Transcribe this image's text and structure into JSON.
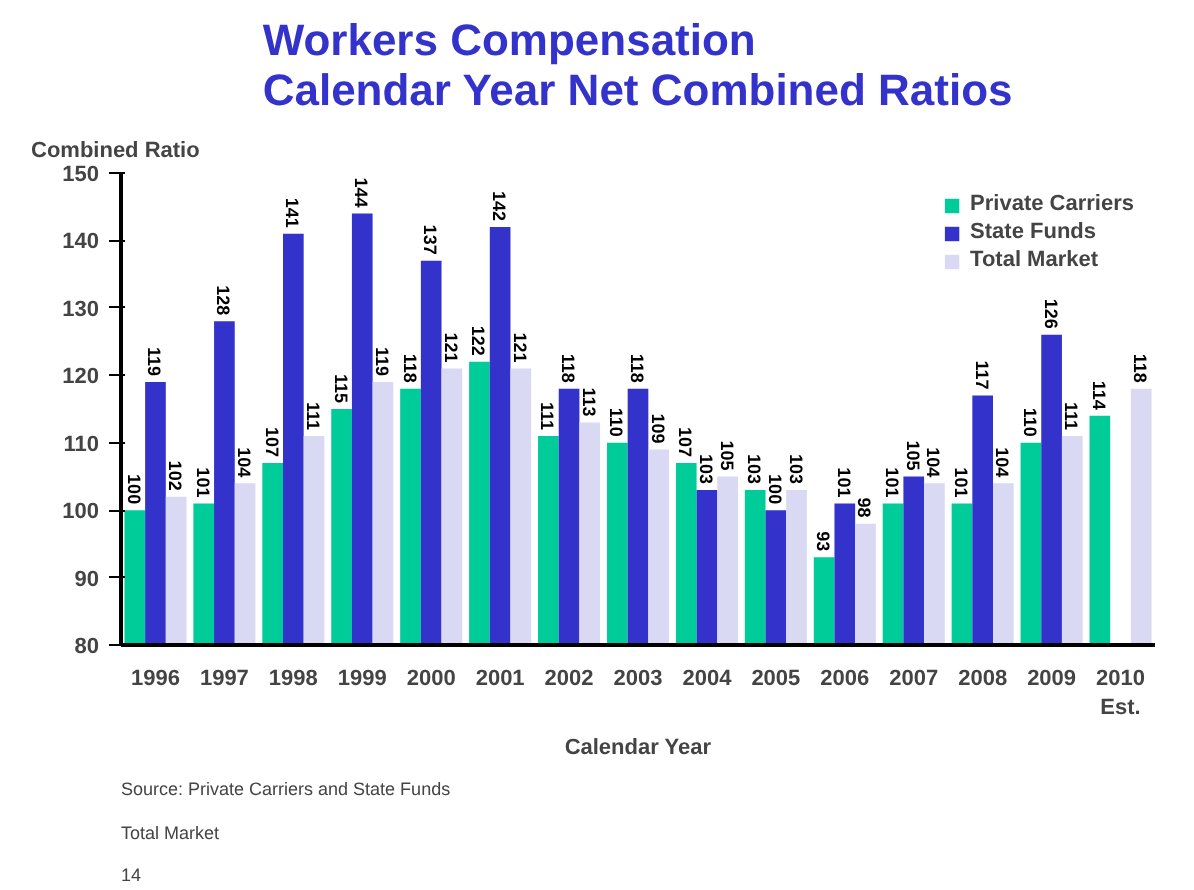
{
  "chart_data": {
    "type": "bar",
    "title": "Workers Compensation\nCalendar Year Net Combined Ratios",
    "xlabel": "Calendar Year",
    "ylabel": "Combined Ratio",
    "categories": [
      "1996",
      "1997",
      "1998",
      "1999",
      "2000",
      "2001",
      "2002",
      "2003",
      "2004",
      "2005",
      "2006",
      "2007",
      "2008",
      "2009",
      "2010\nEst."
    ],
    "series": [
      {
        "name": "Private Carriers",
        "color": "#00cc99",
        "values": [
          100,
          101,
          107,
          115,
          118,
          122,
          111,
          110,
          107,
          103,
          93,
          101,
          101,
          110,
          114
        ]
      },
      {
        "name": "State Funds",
        "color": "#3333cc",
        "values": [
          119,
          128,
          141,
          144,
          137,
          142,
          118,
          118,
          103,
          100,
          101,
          105,
          117,
          126,
          null
        ]
      },
      {
        "name": "Total Market",
        "color": "#d9d9f3",
        "values": [
          102,
          104,
          111,
          119,
          121,
          121,
          113,
          109,
          105,
          103,
          98,
          104,
          104,
          111,
          118
        ]
      }
    ],
    "ylim": [
      80,
      150
    ],
    "yticks": [
      80,
      90,
      100,
      110,
      120,
      130,
      140,
      150
    ],
    "grid": false,
    "legend": "top right",
    "data_labels": true,
    "annotations": [
      "Source:   Private Carriers and State Funds",
      "               Total Market",
      "14"
    ]
  }
}
